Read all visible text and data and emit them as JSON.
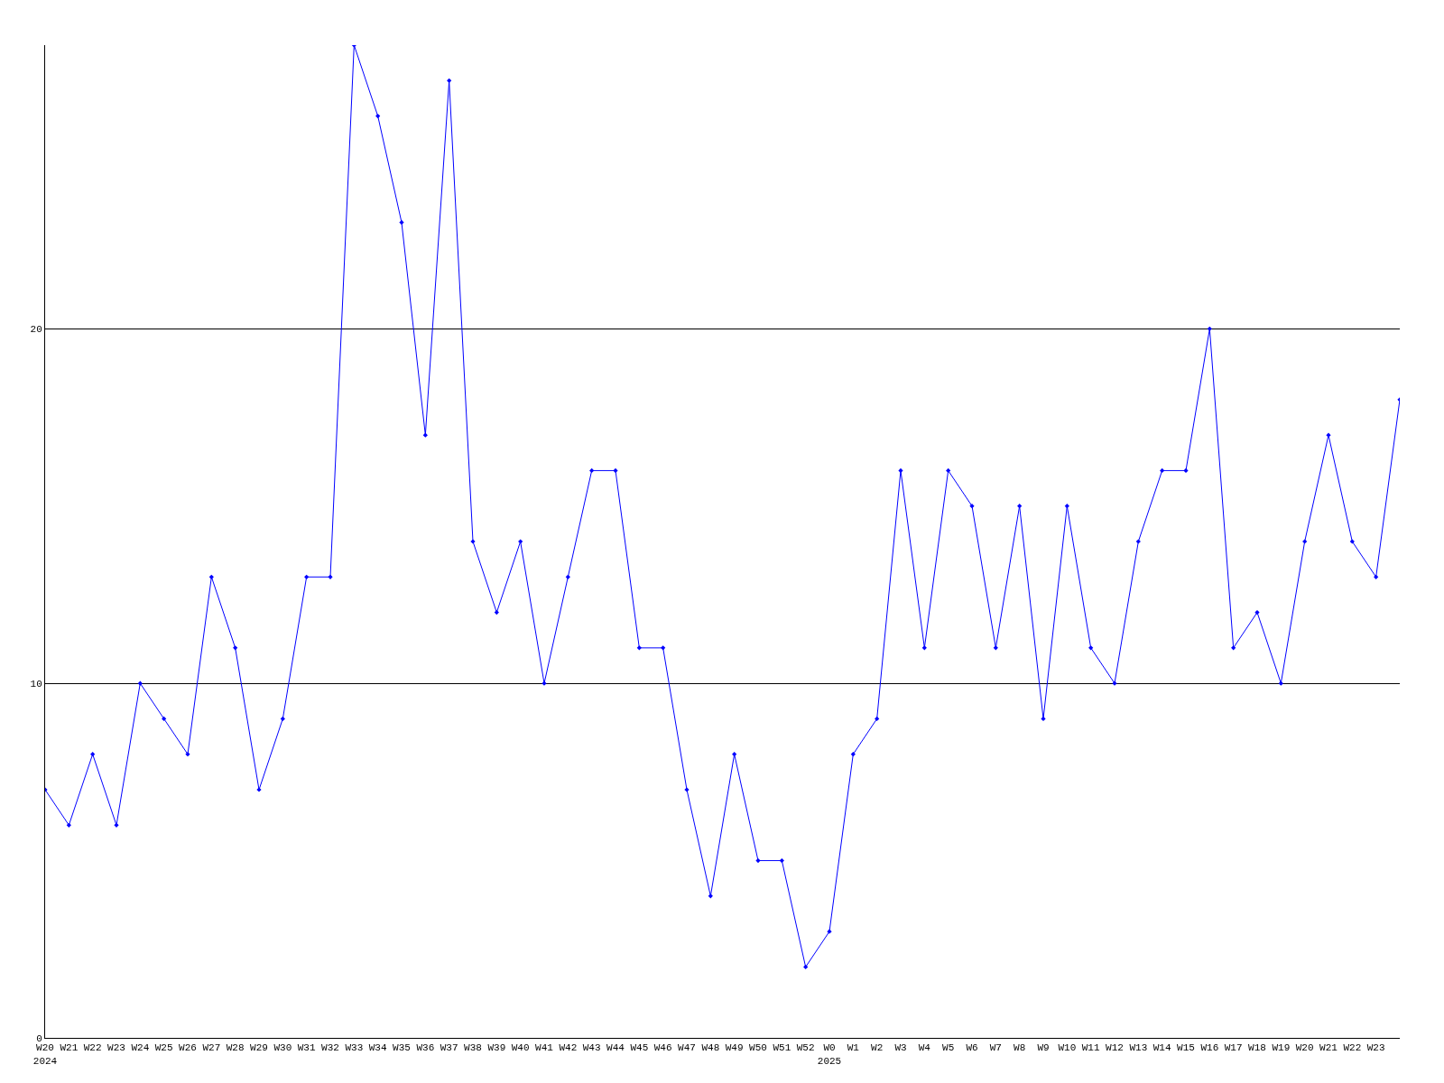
{
  "chart_data": {
    "type": "line",
    "categories": [
      "W20\n2024",
      "W21",
      "W22",
      "W23",
      "W24",
      "W25",
      "W26",
      "W27",
      "W28",
      "W29",
      "W30",
      "W31",
      "W32",
      "W33",
      "W34",
      "W35",
      "W36",
      "W37",
      "W38",
      "W39",
      "W40",
      "W41",
      "W42",
      "W43",
      "W44",
      "W45",
      "W46",
      "W47",
      "W48",
      "W49",
      "W50",
      "W51",
      "W52",
      "W0\n2025",
      "W1",
      "W2",
      "W3",
      "W4",
      "W5",
      "W6",
      "W7",
      "W8",
      "W9",
      "W10",
      "W11",
      "W12",
      "W13",
      "W14",
      "W15",
      "W16",
      "W17",
      "W18",
      "W19",
      "W20",
      "W21",
      "W22",
      "W23",
      null
    ],
    "series": [
      {
        "color": "#0000ff",
        "values": [
          7,
          6,
          8,
          6,
          10,
          9,
          8,
          13,
          11,
          7,
          9,
          13,
          13,
          28,
          26,
          23,
          17,
          27,
          14,
          12,
          14,
          10,
          13,
          16,
          16,
          11,
          11,
          7,
          4,
          8,
          5,
          5,
          2,
          3,
          8,
          9,
          16,
          11,
          16,
          15,
          11,
          15,
          9,
          15,
          11,
          10,
          14,
          16,
          16,
          20,
          11,
          12,
          10,
          14,
          17,
          14,
          13,
          18
        ]
      }
    ],
    "ylim": [
      0,
      28
    ],
    "yticks": [
      0,
      10,
      20
    ],
    "grid": "y",
    "marker": "diamond",
    "line_style": "solid"
  }
}
